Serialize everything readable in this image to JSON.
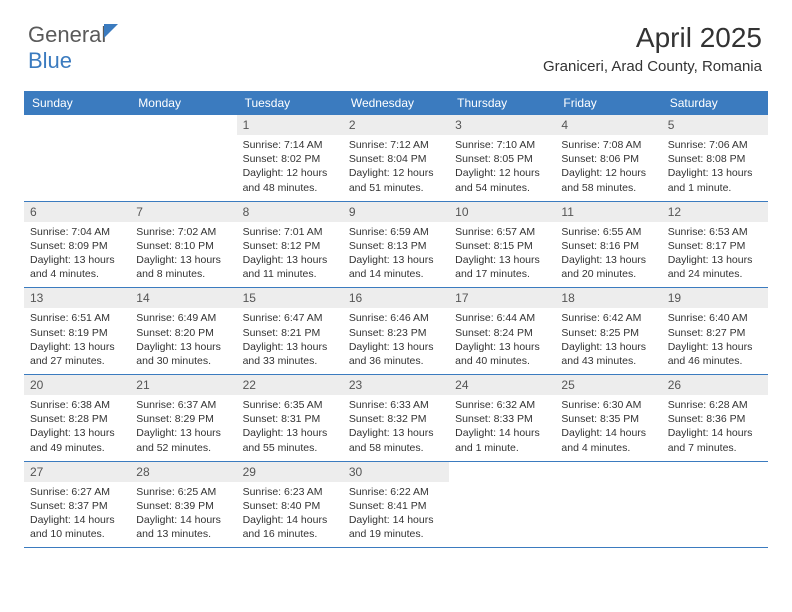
{
  "brand": {
    "general": "General",
    "blue": "Blue"
  },
  "title": "April 2025",
  "location": "Graniceri, Arad County, Romania",
  "weekdays": [
    "Sunday",
    "Monday",
    "Tuesday",
    "Wednesday",
    "Thursday",
    "Friday",
    "Saturday"
  ],
  "colors": {
    "header_bg": "#3b7bbf",
    "daynum_bg": "#ededed",
    "text": "#333333",
    "border": "#3b7bbf"
  },
  "weeks": [
    [
      {
        "day": "",
        "lines": []
      },
      {
        "day": "",
        "lines": []
      },
      {
        "day": "1",
        "lines": [
          "Sunrise: 7:14 AM",
          "Sunset: 8:02 PM",
          "Daylight: 12 hours",
          "and 48 minutes."
        ]
      },
      {
        "day": "2",
        "lines": [
          "Sunrise: 7:12 AM",
          "Sunset: 8:04 PM",
          "Daylight: 12 hours",
          "and 51 minutes."
        ]
      },
      {
        "day": "3",
        "lines": [
          "Sunrise: 7:10 AM",
          "Sunset: 8:05 PM",
          "Daylight: 12 hours",
          "and 54 minutes."
        ]
      },
      {
        "day": "4",
        "lines": [
          "Sunrise: 7:08 AM",
          "Sunset: 8:06 PM",
          "Daylight: 12 hours",
          "and 58 minutes."
        ]
      },
      {
        "day": "5",
        "lines": [
          "Sunrise: 7:06 AM",
          "Sunset: 8:08 PM",
          "Daylight: 13 hours",
          "and 1 minute."
        ]
      }
    ],
    [
      {
        "day": "6",
        "lines": [
          "Sunrise: 7:04 AM",
          "Sunset: 8:09 PM",
          "Daylight: 13 hours",
          "and 4 minutes."
        ]
      },
      {
        "day": "7",
        "lines": [
          "Sunrise: 7:02 AM",
          "Sunset: 8:10 PM",
          "Daylight: 13 hours",
          "and 8 minutes."
        ]
      },
      {
        "day": "8",
        "lines": [
          "Sunrise: 7:01 AM",
          "Sunset: 8:12 PM",
          "Daylight: 13 hours",
          "and 11 minutes."
        ]
      },
      {
        "day": "9",
        "lines": [
          "Sunrise: 6:59 AM",
          "Sunset: 8:13 PM",
          "Daylight: 13 hours",
          "and 14 minutes."
        ]
      },
      {
        "day": "10",
        "lines": [
          "Sunrise: 6:57 AM",
          "Sunset: 8:15 PM",
          "Daylight: 13 hours",
          "and 17 minutes."
        ]
      },
      {
        "day": "11",
        "lines": [
          "Sunrise: 6:55 AM",
          "Sunset: 8:16 PM",
          "Daylight: 13 hours",
          "and 20 minutes."
        ]
      },
      {
        "day": "12",
        "lines": [
          "Sunrise: 6:53 AM",
          "Sunset: 8:17 PM",
          "Daylight: 13 hours",
          "and 24 minutes."
        ]
      }
    ],
    [
      {
        "day": "13",
        "lines": [
          "Sunrise: 6:51 AM",
          "Sunset: 8:19 PM",
          "Daylight: 13 hours",
          "and 27 minutes."
        ]
      },
      {
        "day": "14",
        "lines": [
          "Sunrise: 6:49 AM",
          "Sunset: 8:20 PM",
          "Daylight: 13 hours",
          "and 30 minutes."
        ]
      },
      {
        "day": "15",
        "lines": [
          "Sunrise: 6:47 AM",
          "Sunset: 8:21 PM",
          "Daylight: 13 hours",
          "and 33 minutes."
        ]
      },
      {
        "day": "16",
        "lines": [
          "Sunrise: 6:46 AM",
          "Sunset: 8:23 PM",
          "Daylight: 13 hours",
          "and 36 minutes."
        ]
      },
      {
        "day": "17",
        "lines": [
          "Sunrise: 6:44 AM",
          "Sunset: 8:24 PM",
          "Daylight: 13 hours",
          "and 40 minutes."
        ]
      },
      {
        "day": "18",
        "lines": [
          "Sunrise: 6:42 AM",
          "Sunset: 8:25 PM",
          "Daylight: 13 hours",
          "and 43 minutes."
        ]
      },
      {
        "day": "19",
        "lines": [
          "Sunrise: 6:40 AM",
          "Sunset: 8:27 PM",
          "Daylight: 13 hours",
          "and 46 minutes."
        ]
      }
    ],
    [
      {
        "day": "20",
        "lines": [
          "Sunrise: 6:38 AM",
          "Sunset: 8:28 PM",
          "Daylight: 13 hours",
          "and 49 minutes."
        ]
      },
      {
        "day": "21",
        "lines": [
          "Sunrise: 6:37 AM",
          "Sunset: 8:29 PM",
          "Daylight: 13 hours",
          "and 52 minutes."
        ]
      },
      {
        "day": "22",
        "lines": [
          "Sunrise: 6:35 AM",
          "Sunset: 8:31 PM",
          "Daylight: 13 hours",
          "and 55 minutes."
        ]
      },
      {
        "day": "23",
        "lines": [
          "Sunrise: 6:33 AM",
          "Sunset: 8:32 PM",
          "Daylight: 13 hours",
          "and 58 minutes."
        ]
      },
      {
        "day": "24",
        "lines": [
          "Sunrise: 6:32 AM",
          "Sunset: 8:33 PM",
          "Daylight: 14 hours",
          "and 1 minute."
        ]
      },
      {
        "day": "25",
        "lines": [
          "Sunrise: 6:30 AM",
          "Sunset: 8:35 PM",
          "Daylight: 14 hours",
          "and 4 minutes."
        ]
      },
      {
        "day": "26",
        "lines": [
          "Sunrise: 6:28 AM",
          "Sunset: 8:36 PM",
          "Daylight: 14 hours",
          "and 7 minutes."
        ]
      }
    ],
    [
      {
        "day": "27",
        "lines": [
          "Sunrise: 6:27 AM",
          "Sunset: 8:37 PM",
          "Daylight: 14 hours",
          "and 10 minutes."
        ]
      },
      {
        "day": "28",
        "lines": [
          "Sunrise: 6:25 AM",
          "Sunset: 8:39 PM",
          "Daylight: 14 hours",
          "and 13 minutes."
        ]
      },
      {
        "day": "29",
        "lines": [
          "Sunrise: 6:23 AM",
          "Sunset: 8:40 PM",
          "Daylight: 14 hours",
          "and 16 minutes."
        ]
      },
      {
        "day": "30",
        "lines": [
          "Sunrise: 6:22 AM",
          "Sunset: 8:41 PM",
          "Daylight: 14 hours",
          "and 19 minutes."
        ]
      },
      {
        "day": "",
        "lines": []
      },
      {
        "day": "",
        "lines": []
      },
      {
        "day": "",
        "lines": []
      }
    ]
  ]
}
